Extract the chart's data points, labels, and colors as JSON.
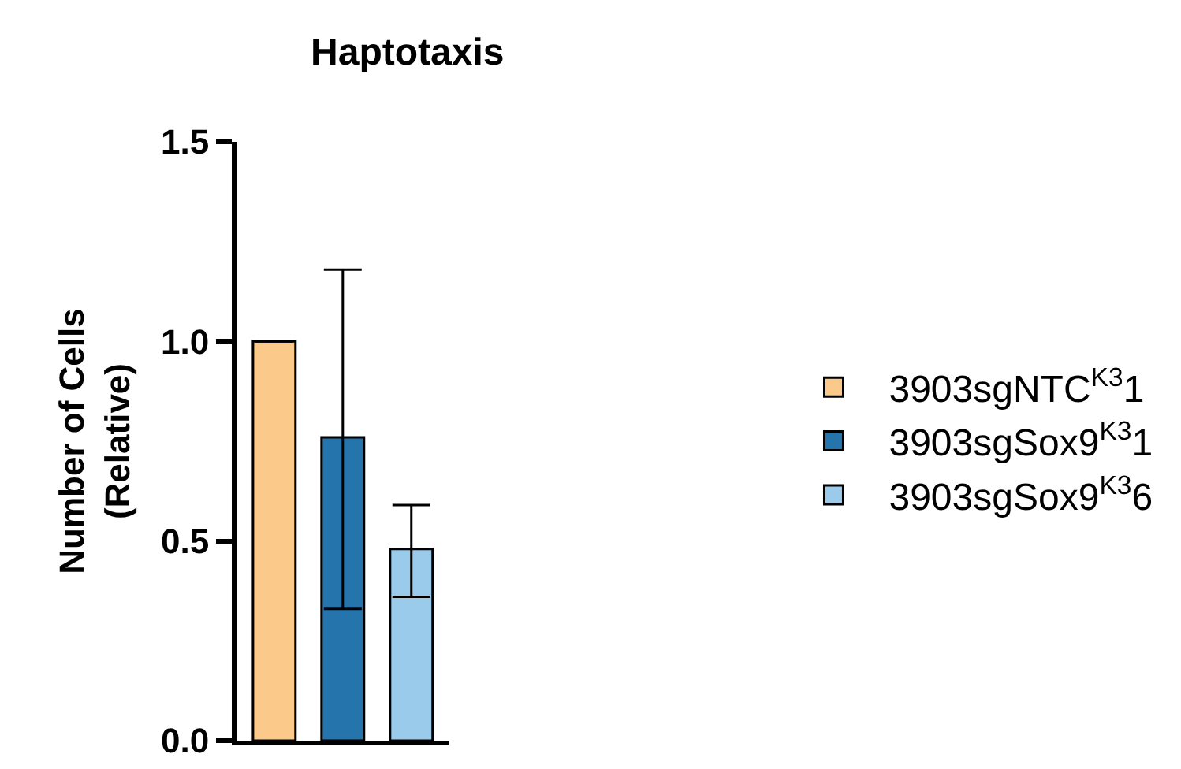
{
  "chart_data": {
    "type": "bar",
    "title": "Haptotaxis",
    "ylabel": "Number of Cells\n(Relative)",
    "categories": [
      null,
      null,
      null
    ],
    "series": [
      {
        "name": "3903sgNTC$^{K3}$1",
        "color": "#fbc98a",
        "values": [
          1.0,
          null,
          null
        ],
        "errors": [
          null,
          null,
          null
        ]
      },
      {
        "name": "3903sgSox9$^{K3}$1",
        "color": "#2574ab",
        "values": [
          null,
          0.76,
          null
        ],
        "errors": [
          null,
          [
            0.33,
            1.18
          ],
          null
        ]
      },
      {
        "name": "3903sgSox9$^{K3}$6",
        "color": "#9acbea",
        "values": [
          null,
          null,
          0.48
        ],
        "errors": [
          null,
          null,
          [
            0.36,
            0.59
          ]
        ]
      }
    ],
    "ylim": [
      0,
      1.5
    ],
    "yticks": [
      {
        "value": 0,
        "label": "0.0"
      },
      {
        "value": 0.5,
        "label": "0.5"
      },
      {
        "value": 1,
        "label": "1.0"
      },
      {
        "value": 1.5,
        "label": "1.5"
      }
    ],
    "grid": false,
    "legend": "right",
    "tick_labels": "y"
  }
}
